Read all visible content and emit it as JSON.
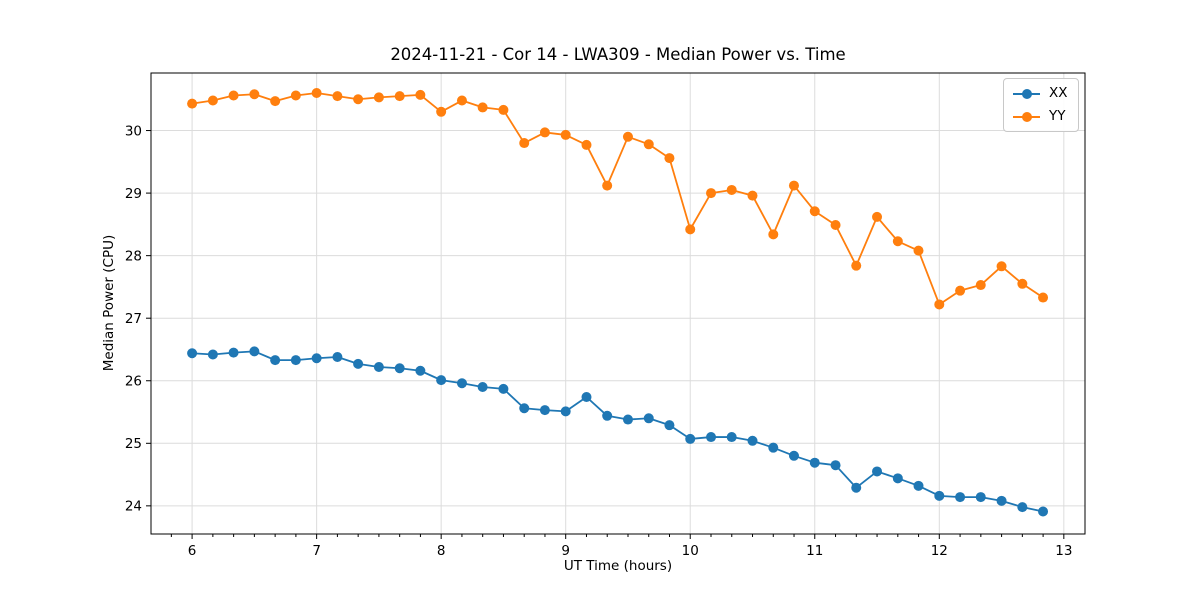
{
  "chart_data": {
    "type": "line",
    "title": "2024-11-21 - Cor 14 - LWA309 - Median Power vs. Time",
    "xlabel": "UT Time (hours)",
    "ylabel": "Median Power (CPU)",
    "xlim": [
      5.67,
      13.17
    ],
    "ylim": [
      23.55,
      30.92
    ],
    "x_ticks": [
      6,
      7,
      8,
      9,
      10,
      11,
      12,
      13
    ],
    "y_ticks": [
      24,
      25,
      26,
      27,
      28,
      29,
      30
    ],
    "x_minor_tick_step": 0.16667,
    "grid": true,
    "legend_position": "upper right",
    "marker": "circle",
    "x": [
      6.0,
      6.167,
      6.333,
      6.5,
      6.667,
      6.833,
      7.0,
      7.167,
      7.333,
      7.5,
      7.667,
      7.833,
      8.0,
      8.167,
      8.333,
      8.5,
      8.667,
      8.833,
      9.0,
      9.167,
      9.333,
      9.5,
      9.667,
      9.833,
      10.0,
      10.167,
      10.333,
      10.5,
      10.667,
      10.833,
      11.0,
      11.167,
      11.333,
      11.5,
      11.667,
      11.833,
      12.0,
      12.167,
      12.333,
      12.5,
      12.667,
      12.833
    ],
    "series": [
      {
        "name": "XX",
        "color": "#1f77b4",
        "values": [
          26.44,
          26.42,
          26.45,
          26.47,
          26.33,
          26.33,
          26.36,
          26.38,
          26.27,
          26.22,
          26.2,
          26.16,
          26.01,
          25.96,
          25.9,
          25.87,
          25.56,
          25.53,
          25.51,
          25.74,
          25.44,
          25.38,
          25.4,
          25.29,
          25.07,
          25.1,
          25.1,
          25.04,
          24.93,
          24.8,
          24.69,
          24.65,
          24.29,
          24.55,
          24.44,
          24.32,
          24.16,
          24.14,
          24.14,
          24.08,
          23.98,
          23.91
        ]
      },
      {
        "name": "YY",
        "color": "#ff7f0e",
        "values": [
          30.43,
          30.48,
          30.56,
          30.58,
          30.47,
          30.56,
          30.6,
          30.55,
          30.5,
          30.53,
          30.55,
          30.57,
          30.3,
          30.48,
          30.37,
          30.33,
          29.8,
          29.97,
          29.93,
          29.77,
          29.12,
          29.9,
          29.78,
          29.56,
          28.42,
          29.0,
          29.05,
          28.96,
          28.34,
          29.12,
          28.71,
          28.49,
          27.84,
          28.62,
          28.23,
          28.08,
          27.22,
          27.44,
          27.53,
          27.83,
          27.55,
          27.33
        ]
      }
    ]
  },
  "colors": {
    "grid": "#dcdcdc",
    "spine": "#000000",
    "tick": "#000000",
    "text": "#000000"
  }
}
